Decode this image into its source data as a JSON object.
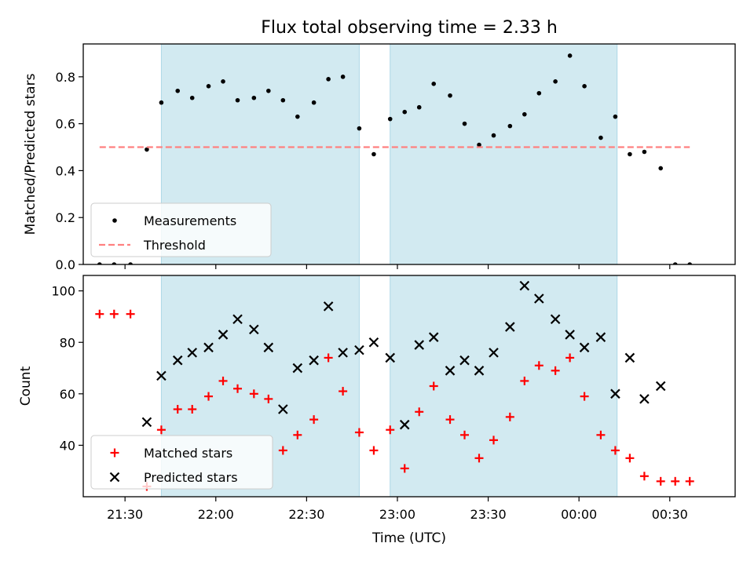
{
  "chart_data": {
    "type": "scatter",
    "title": "Flux total observing time = 2.33 h",
    "xlabel": "Time (UTC)",
    "x_tick_labels": [
      "21:30",
      "22:00",
      "22:30",
      "23:00",
      "23:30",
      "00:00",
      "00:30"
    ],
    "x_tick_hours": [
      21.5,
      22.0,
      22.5,
      23.0,
      23.5,
      24.0,
      24.5
    ],
    "xlim_hours": [
      21.27,
      24.86
    ],
    "shaded_intervals_hours": [
      [
        21.7,
        22.79
      ],
      [
        22.96,
        24.21
      ]
    ],
    "shade_color": "#add8e6",
    "panels": [
      {
        "ylabel": "Matched/Predicted stars",
        "ylim": [
          0,
          0.94
        ],
        "yticks": [
          0.0,
          0.2,
          0.4,
          0.6,
          0.8
        ],
        "ytick_labels": [
          "0.0",
          "0.2",
          "0.4",
          "0.6",
          "0.8"
        ],
        "series": [
          {
            "name": "Measurements",
            "marker": "dot",
            "color": "#000000",
            "x": [
              21.36,
              21.44,
              21.53,
              21.62,
              21.7,
              21.79,
              21.87,
              21.96,
              22.04,
              22.12,
              22.21,
              22.29,
              22.37,
              22.45,
              22.54,
              22.62,
              22.7,
              22.79,
              22.87,
              22.96,
              23.04,
              23.12,
              23.2,
              23.29,
              23.37,
              23.45,
              23.53,
              23.62,
              23.7,
              23.78,
              23.87,
              23.95,
              24.03,
              24.12,
              24.2,
              24.28,
              24.36,
              24.45,
              24.53,
              24.61
            ],
            "y": [
              0.0,
              0.0,
              0.0,
              0.49,
              0.69,
              0.74,
              0.71,
              0.76,
              0.78,
              0.7,
              0.71,
              0.74,
              0.7,
              0.63,
              0.69,
              0.79,
              0.8,
              0.58,
              0.47,
              0.62,
              0.65,
              0.67,
              0.77,
              0.72,
              0.6,
              0.51,
              0.55,
              0.59,
              0.64,
              0.73,
              0.78,
              0.89,
              0.76,
              0.54,
              0.63,
              0.47,
              0.48,
              0.41,
              0.0,
              0.0
            ]
          },
          {
            "name": "Threshold",
            "marker": "dashed-line",
            "color": "#ff8080",
            "x": [
              21.36,
              24.61
            ],
            "y": [
              0.5,
              0.5
            ]
          }
        ],
        "legend": "lower-left"
      },
      {
        "ylabel": "Count",
        "ylim": [
          20,
          106
        ],
        "yticks": [
          40,
          60,
          80,
          100
        ],
        "ytick_labels": [
          "40",
          "60",
          "80",
          "100"
        ],
        "series": [
          {
            "name": "Matched stars",
            "marker": "plus",
            "color": "#ff0000",
            "x": [
              21.36,
              21.44,
              21.53,
              21.62,
              21.7,
              21.79,
              21.87,
              21.96,
              22.04,
              22.12,
              22.21,
              22.29,
              22.37,
              22.45,
              22.54,
              22.62,
              22.7,
              22.79,
              22.87,
              22.96,
              23.04,
              23.12,
              23.2,
              23.29,
              23.37,
              23.45,
              23.53,
              23.62,
              23.7,
              23.78,
              23.87,
              23.95,
              24.03,
              24.12,
              24.2,
              24.28,
              24.36,
              24.45,
              24.53,
              24.61
            ],
            "y": [
              91,
              91,
              91,
              24,
              46,
              54,
              54,
              59,
              65,
              62,
              60,
              58,
              38,
              44,
              50,
              74,
              61,
              45,
              38,
              46,
              31,
              53,
              63,
              50,
              44,
              35,
              42,
              51,
              65,
              71,
              69,
              74,
              59,
              44,
              38,
              35,
              28,
              26,
              26,
              26
            ]
          },
          {
            "name": "Predicted stars",
            "marker": "x",
            "color": "#000000",
            "x": [
              21.62,
              21.7,
              21.79,
              21.87,
              21.96,
              22.04,
              22.12,
              22.21,
              22.29,
              22.37,
              22.45,
              22.54,
              22.62,
              22.7,
              22.79,
              22.87,
              22.96,
              23.04,
              23.12,
              23.2,
              23.29,
              23.37,
              23.45,
              23.53,
              23.62,
              23.7,
              23.78,
              23.87,
              23.95,
              24.03,
              24.12,
              24.2,
              24.28,
              24.36,
              24.45
            ],
            "y": [
              49,
              67,
              73,
              76,
              78,
              83,
              89,
              85,
              78,
              54,
              70,
              73,
              94,
              76,
              77,
              80,
              74,
              48,
              79,
              82,
              69,
              73,
              69,
              76,
              86,
              102,
              97,
              89,
              83,
              78,
              82,
              60,
              74,
              58,
              63
            ]
          }
        ],
        "legend": "lower-left"
      }
    ]
  }
}
